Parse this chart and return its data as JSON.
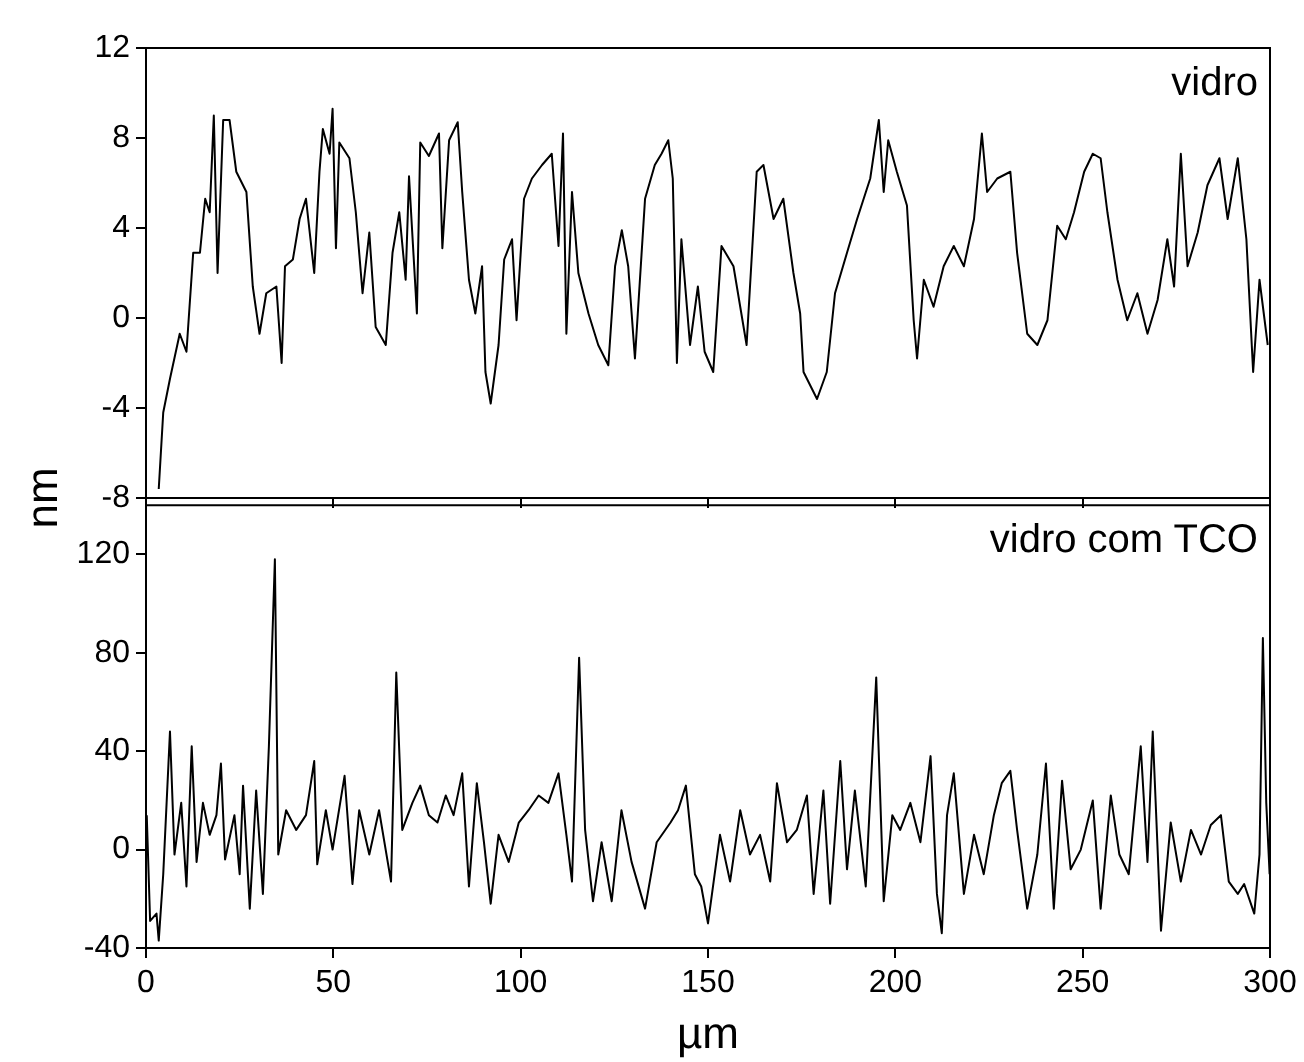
{
  "chart_data": [
    {
      "type": "line",
      "ylabel": "nm",
      "xlim": [
        0,
        300
      ],
      "xticks": [
        0,
        50,
        100,
        150,
        200,
        250,
        300
      ],
      "ylim": [
        -8,
        12
      ],
      "yticks": [
        -8,
        -4,
        0,
        4,
        8,
        12
      ],
      "tick_labels": "y",
      "marker": "none",
      "line_style": "solid",
      "legend": false,
      "series": [
        {
          "name": "vidro",
          "color": "#000000",
          "x": [
            3.4,
            4.6,
            6.4,
            9.0,
            10.8,
            12.6,
            14.4,
            15.8,
            17.0,
            18.1,
            19.1,
            20.6,
            22.3,
            24.1,
            26.8,
            28.5,
            30.3,
            32.1,
            34.8,
            36.2,
            37.1,
            39.2,
            41.0,
            42.7,
            44.9,
            46.3,
            47.2,
            49.0,
            49.8,
            50.7,
            51.6,
            54.3,
            56.0,
            57.8,
            59.6,
            61.3,
            64.0,
            65.8,
            67.6,
            69.3,
            70.2,
            72.3,
            73.2,
            75.5,
            78.2,
            79.1,
            80.9,
            83.2,
            84.4,
            86.2,
            87.9,
            89.7,
            90.6,
            92.0,
            94.1,
            95.6,
            97.7,
            98.9,
            100.9,
            103.0,
            105.7,
            108.3,
            110.1,
            111.3,
            112.2,
            113.7,
            115.4,
            118.1,
            120.7,
            123.4,
            125.2,
            127.0,
            128.7,
            130.5,
            133.2,
            135.8,
            137.6,
            139.4,
            140.6,
            141.7,
            142.9,
            145.2,
            147.3,
            149.1,
            151.4,
            153.6,
            156.8,
            160.3,
            163.0,
            164.8,
            167.5,
            170.1,
            172.8,
            174.6,
            175.5,
            179.1,
            181.7,
            183.9,
            187.1,
            189.8,
            193.3,
            195.6,
            196.9,
            198.1,
            200.4,
            203.1,
            204.9,
            205.8,
            207.6,
            210.2,
            212.9,
            215.6,
            218.3,
            221.0,
            223.1,
            224.5,
            227.2,
            230.7,
            232.5,
            235.2,
            237.9,
            240.6,
            243.2,
            245.5,
            247.7,
            250.4,
            252.7,
            254.8,
            256.6,
            259.3,
            261.9,
            264.6,
            267.3,
            270.0,
            272.6,
            274.4,
            276.2,
            278.0,
            280.7,
            283.3,
            286.5,
            288.7,
            291.4,
            293.7,
            295.5,
            297.2,
            299.4
          ],
          "values": [
            -7.6,
            -4.2,
            -2.7,
            -0.7,
            -1.5,
            2.9,
            2.9,
            5.3,
            4.7,
            9.0,
            2.0,
            8.8,
            8.8,
            6.5,
            5.6,
            1.4,
            -0.7,
            1.1,
            1.4,
            -2.0,
            2.3,
            2.6,
            4.4,
            5.3,
            2.0,
            6.5,
            8.4,
            7.3,
            9.3,
            3.1,
            7.8,
            7.1,
            4.7,
            1.1,
            3.8,
            -0.4,
            -1.2,
            2.9,
            4.7,
            1.7,
            6.3,
            0.2,
            7.8,
            7.2,
            8.2,
            3.1,
            7.9,
            8.7,
            5.6,
            1.7,
            0.2,
            2.3,
            -2.4,
            -3.8,
            -1.2,
            2.6,
            3.5,
            -0.1,
            5.3,
            6.2,
            6.8,
            7.3,
            3.2,
            8.2,
            -0.7,
            5.6,
            2.0,
            0.2,
            -1.2,
            -2.1,
            2.3,
            3.9,
            2.3,
            -1.8,
            5.3,
            6.8,
            7.3,
            7.9,
            6.2,
            -2.0,
            3.5,
            -1.2,
            1.4,
            -1.5,
            -2.4,
            3.2,
            2.3,
            -1.2,
            6.5,
            6.8,
            4.4,
            5.3,
            2.0,
            0.2,
            -2.4,
            -3.6,
            -2.4,
            1.1,
            2.9,
            4.4,
            6.2,
            8.8,
            5.6,
            7.9,
            6.5,
            5.0,
            -0.1,
            -1.8,
            1.7,
            0.5,
            2.3,
            3.2,
            2.3,
            4.4,
            8.2,
            5.6,
            6.2,
            6.5,
            2.9,
            -0.7,
            -1.2,
            -0.1,
            4.1,
            3.5,
            4.7,
            6.5,
            7.3,
            7.1,
            4.7,
            1.7,
            -0.1,
            1.1,
            -0.7,
            0.8,
            3.5,
            1.4,
            7.3,
            2.3,
            3.8,
            5.9,
            7.1,
            4.4,
            7.1,
            3.5,
            -2.4,
            1.7,
            -1.2
          ]
        }
      ]
    },
    {
      "type": "line",
      "xlabel": "µm",
      "xlim": [
        0,
        300
      ],
      "xticks": [
        0,
        50,
        100,
        150,
        200,
        250,
        300
      ],
      "ylim": [
        -40,
        140
      ],
      "yticks": [
        -40,
        0,
        40,
        80,
        120
      ],
      "marker": "none",
      "line_style": "solid",
      "legend": false,
      "series": [
        {
          "name": "vidro com TCO",
          "color": "#000000",
          "x": [
            0.2,
            1.1,
            2.8,
            3.4,
            4.6,
            6.4,
            7.6,
            9.4,
            10.8,
            12.2,
            13.5,
            15.2,
            17.0,
            18.8,
            20.0,
            21.1,
            23.6,
            25.0,
            25.9,
            27.7,
            29.4,
            31.2,
            32.8,
            34.4,
            35.3,
            37.4,
            40.1,
            42.7,
            44.9,
            45.7,
            48.0,
            49.8,
            53.0,
            55.1,
            56.9,
            59.6,
            62.2,
            65.4,
            66.8,
            68.4,
            71.1,
            73.2,
            75.5,
            77.8,
            80.0,
            82.1,
            84.4,
            86.2,
            88.3,
            90.2,
            92.0,
            94.1,
            96.8,
            99.5,
            102.1,
            104.8,
            107.4,
            110.1,
            112.2,
            113.7,
            115.6,
            117.2,
            119.3,
            121.6,
            124.3,
            126.9,
            129.6,
            133.2,
            136.3,
            140.0,
            142.0,
            144.1,
            146.5,
            148.2,
            150.0,
            153.2,
            155.9,
            158.6,
            161.2,
            163.9,
            166.6,
            168.4,
            171.1,
            173.7,
            176.4,
            178.2,
            180.8,
            182.6,
            185.3,
            187.1,
            189.2,
            192.1,
            194.9,
            196.9,
            199.2,
            201.3,
            204.0,
            206.7,
            209.4,
            211.1,
            212.4,
            213.8,
            215.6,
            218.3,
            221.0,
            223.6,
            226.3,
            228.4,
            230.7,
            232.5,
            235.2,
            237.9,
            240.2,
            242.3,
            244.5,
            246.8,
            249.5,
            252.7,
            254.8,
            257.5,
            259.8,
            262.3,
            265.5,
            267.3,
            268.7,
            270.9,
            273.5,
            276.2,
            278.9,
            281.6,
            284.2,
            286.9,
            289.0,
            291.4,
            293.1,
            295.8,
            297.2,
            298.1,
            299.0,
            299.9
          ],
          "values": [
            14,
            -29,
            -26,
            -37,
            -10,
            48,
            -2,
            19,
            -15,
            42,
            -5,
            19,
            6,
            14,
            35,
            -4,
            14,
            -10,
            26,
            -24,
            24,
            -18,
            42,
            118,
            -2,
            16,
            8,
            14,
            36,
            -6,
            16,
            0,
            30,
            -14,
            16,
            -2,
            16,
            -13,
            72,
            8,
            19,
            26,
            14,
            11,
            22,
            14,
            31,
            -15,
            27,
            3,
            -22,
            6,
            -5,
            11,
            16,
            22,
            19,
            31,
            6,
            -13,
            78,
            8,
            -21,
            3,
            -21,
            16,
            -5,
            -24,
            3,
            11,
            16,
            26,
            -10,
            -15,
            -30,
            6,
            -13,
            16,
            -2,
            6,
            -13,
            27,
            3,
            8,
            22,
            -18,
            24,
            -22,
            36,
            -8,
            24,
            -15,
            70,
            -21,
            14,
            8,
            19,
            3,
            38,
            -18,
            -34,
            14,
            31,
            -18,
            6,
            -10,
            14,
            27,
            32,
            8,
            -24,
            -2,
            35,
            -24,
            28,
            -8,
            0,
            20,
            -24,
            22,
            -2,
            -10,
            42,
            -5,
            48,
            -33,
            11,
            -13,
            8,
            -2,
            10,
            14,
            -13,
            -18,
            -14,
            -26,
            -2,
            86,
            19,
            -10
          ]
        }
      ]
    }
  ]
}
